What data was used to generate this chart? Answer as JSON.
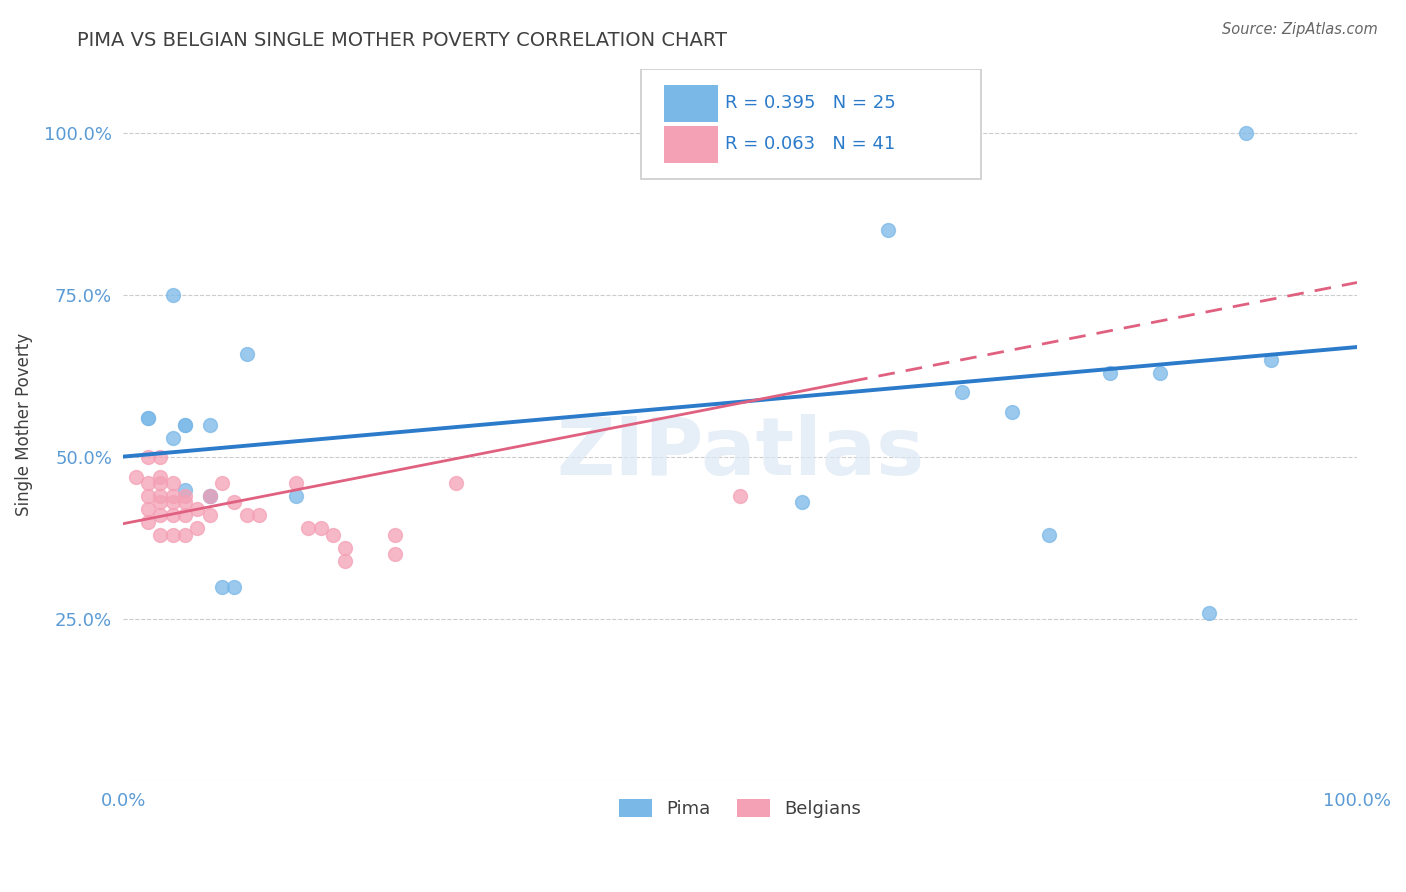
{
  "title": "PIMA VS BELGIAN SINGLE MOTHER POVERTY CORRELATION CHART",
  "source": "Source: ZipAtlas.com",
  "ylabel": "Single Mother Poverty",
  "watermark": "ZIPatlas",
  "pima_R": 0.395,
  "pima_N": 25,
  "belgian_R": 0.063,
  "belgian_N": 41,
  "pima_color": "#7ab8e8",
  "belgian_color": "#f4a0b5",
  "pima_line_color": "#2b7bca",
  "belgian_line_color": "#e06080",
  "pima_points": [
    [
      0.02,
      0.56
    ],
    [
      0.02,
      0.56
    ],
    [
      0.04,
      0.75
    ],
    [
      0.04,
      0.53
    ],
    [
      0.05,
      0.55
    ],
    [
      0.05,
      0.55
    ],
    [
      0.05,
      0.45
    ],
    [
      0.07,
      0.44
    ],
    [
      0.07,
      0.44
    ],
    [
      0.07,
      0.55
    ],
    [
      0.08,
      0.3
    ],
    [
      0.09,
      0.3
    ],
    [
      0.1,
      0.66
    ],
    [
      0.14,
      0.44
    ],
    [
      0.55,
      0.43
    ],
    [
      0.62,
      0.85
    ],
    [
      0.65,
      1.0
    ],
    [
      0.68,
      0.6
    ],
    [
      0.72,
      0.57
    ],
    [
      0.75,
      0.38
    ],
    [
      0.8,
      0.63
    ],
    [
      0.84,
      0.63
    ],
    [
      0.88,
      0.26
    ],
    [
      0.91,
      1.0
    ],
    [
      0.93,
      0.65
    ]
  ],
  "belgian_points": [
    [
      0.01,
      0.47
    ],
    [
      0.02,
      0.5
    ],
    [
      0.02,
      0.46
    ],
    [
      0.02,
      0.44
    ],
    [
      0.02,
      0.42
    ],
    [
      0.02,
      0.4
    ],
    [
      0.03,
      0.5
    ],
    [
      0.03,
      0.47
    ],
    [
      0.03,
      0.46
    ],
    [
      0.03,
      0.44
    ],
    [
      0.03,
      0.43
    ],
    [
      0.03,
      0.41
    ],
    [
      0.03,
      0.38
    ],
    [
      0.04,
      0.46
    ],
    [
      0.04,
      0.44
    ],
    [
      0.04,
      0.43
    ],
    [
      0.04,
      0.41
    ],
    [
      0.04,
      0.38
    ],
    [
      0.05,
      0.44
    ],
    [
      0.05,
      0.43
    ],
    [
      0.05,
      0.41
    ],
    [
      0.05,
      0.38
    ],
    [
      0.06,
      0.42
    ],
    [
      0.06,
      0.39
    ],
    [
      0.07,
      0.44
    ],
    [
      0.07,
      0.41
    ],
    [
      0.08,
      0.46
    ],
    [
      0.09,
      0.43
    ],
    [
      0.1,
      0.41
    ],
    [
      0.11,
      0.41
    ],
    [
      0.14,
      0.46
    ],
    [
      0.15,
      0.39
    ],
    [
      0.16,
      0.39
    ],
    [
      0.17,
      0.38
    ],
    [
      0.18,
      0.36
    ],
    [
      0.18,
      0.34
    ],
    [
      0.22,
      0.38
    ],
    [
      0.22,
      0.35
    ],
    [
      0.27,
      0.46
    ],
    [
      0.5,
      0.44
    ],
    [
      0.59,
      0.95
    ]
  ],
  "xlim": [
    0,
    1.0
  ],
  "ylim": [
    0,
    1.1
  ],
  "ytick_positions": [
    0.0,
    0.25,
    0.5,
    0.75,
    1.0
  ],
  "ytick_labels": [
    "",
    "25.0%",
    "50.0%",
    "75.0%",
    "100.0%"
  ],
  "xtick_positions": [
    0.0,
    1.0
  ],
  "xtick_labels": [
    "0.0%",
    "100.0%"
  ],
  "grid_color": "#cccccc",
  "background_color": "#ffffff",
  "title_color": "#404040",
  "axis_label_color": "#404040",
  "tick_color": "#5b9bd5",
  "legend_label_color": "#2b7bca"
}
